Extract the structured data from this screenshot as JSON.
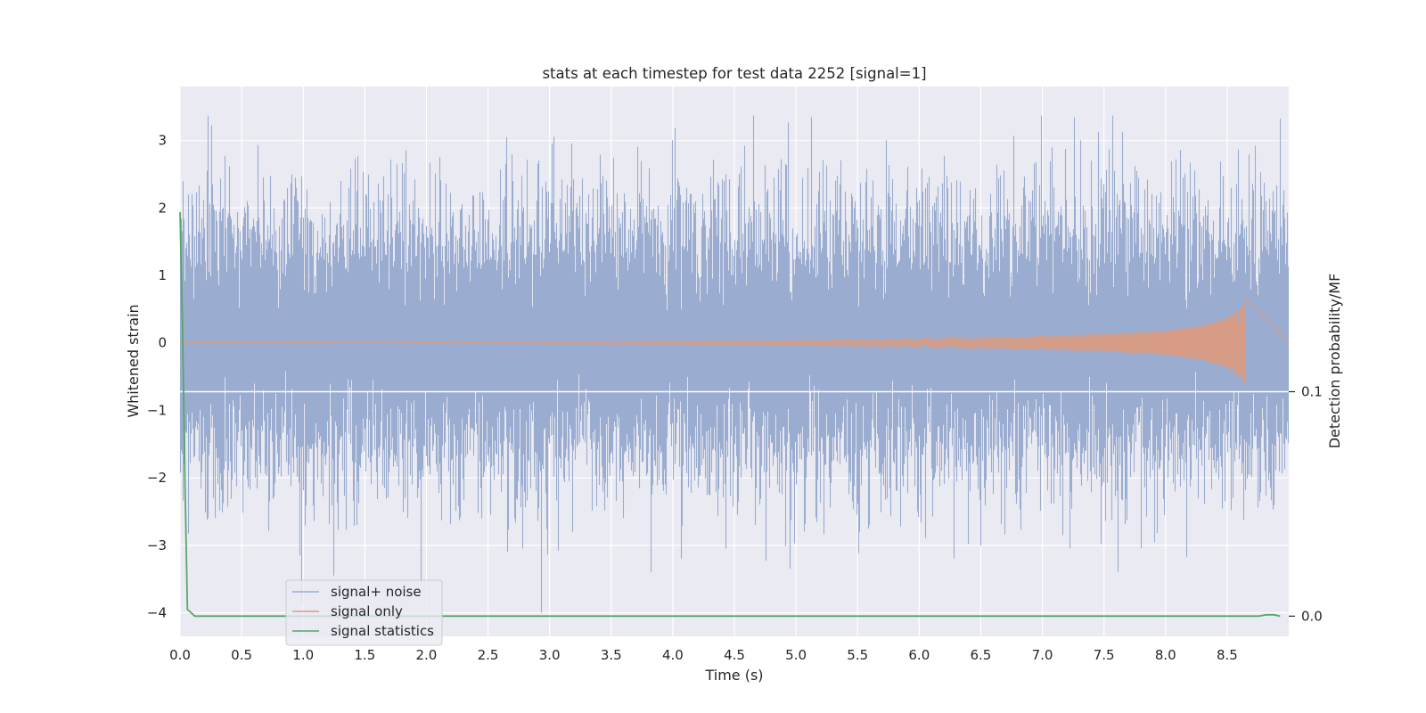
{
  "chart_data": {
    "type": "line",
    "title": "stats at each timestep for test data 2252 [signal=1]",
    "xlabel": "Time (s)",
    "ylabel": "Whitened strain",
    "y2label": "Detection probability/MF",
    "xlim": [
      0.0,
      9.0
    ],
    "ylim": [
      -4.35,
      3.8
    ],
    "y2lim": [
      -0.009,
      0.236
    ],
    "xticks": [
      "0.0",
      "0.5",
      "1.0",
      "1.5",
      "2.0",
      "2.5",
      "3.0",
      "3.5",
      "4.0",
      "4.5",
      "5.0",
      "5.5",
      "6.0",
      "6.5",
      "7.0",
      "7.5",
      "8.0",
      "8.5"
    ],
    "yticks": [
      "3",
      "2",
      "1",
      "0",
      "−1",
      "−2",
      "−3",
      "−4"
    ],
    "y2ticks": [
      "0.1",
      "0.0"
    ],
    "grid": true,
    "legend_position": "lower-left",
    "series": [
      {
        "name": "signal+ noise",
        "color": "#9aaccf",
        "kind": "noise",
        "sample_rate": 2048,
        "sigma": 1.0,
        "min": -4.0,
        "max": 3.37
      },
      {
        "name": "signal only",
        "color": "#dd9a7c",
        "kind": "chirp",
        "t_end": 8.65,
        "envelope": [
          [
            0.0,
            0.0
          ],
          [
            3.5,
            0.02
          ],
          [
            5.0,
            0.04
          ],
          [
            6.0,
            0.06
          ],
          [
            7.0,
            0.1
          ],
          [
            7.5,
            0.13
          ],
          [
            8.0,
            0.18
          ],
          [
            8.3,
            0.26
          ],
          [
            8.5,
            0.38
          ],
          [
            8.62,
            0.55
          ],
          [
            8.65,
            0.7
          ]
        ]
      },
      {
        "name": "signal statistics",
        "color": "#55a868",
        "axis": "right",
        "x": [
          0.0,
          0.02,
          0.04,
          0.06,
          0.12,
          0.5,
          2.0,
          4.0,
          6.0,
          8.0,
          8.75,
          8.82,
          8.88,
          8.93
        ],
        "y": [
          0.18,
          0.13,
          0.06,
          0.003,
          0.0,
          0.0,
          0.0,
          0.0,
          0.0,
          0.0,
          0.0,
          0.0006,
          0.0006,
          0.0
        ]
      }
    ],
    "hline": {
      "axis": "right",
      "value": 0.1,
      "color": "#ffffff"
    },
    "annotations": {
      "notable_spikes": [
        [
          0.25,
          3.22
        ],
        [
          2.93,
          -4.0
        ],
        [
          4.65,
          3.37
        ],
        [
          1.95,
          -3.55
        ],
        [
          8.93,
          3.32
        ]
      ]
    }
  }
}
